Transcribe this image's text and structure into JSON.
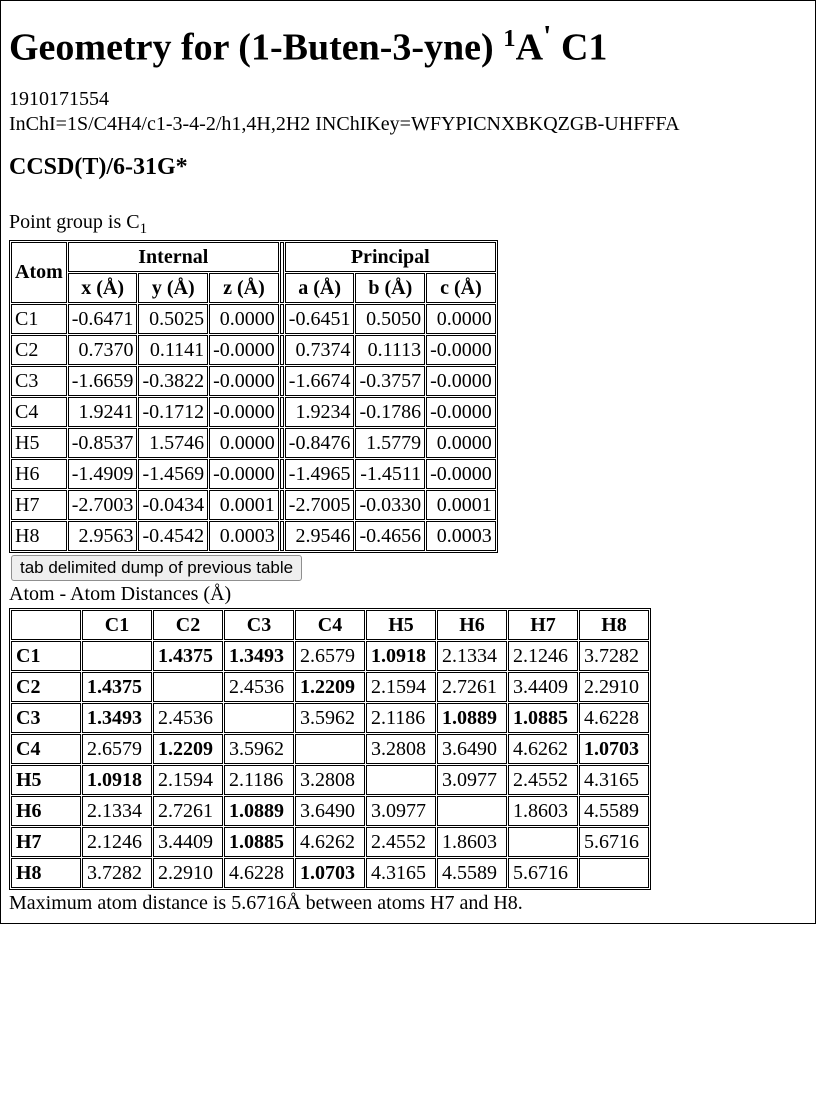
{
  "title_parts": {
    "prefix": "Geometry for (1-Buten-3-yne) ",
    "sup": "1",
    "letter": "A",
    "prime": "'",
    "suffix": " C1"
  },
  "meta": {
    "id": "1910171554",
    "inchi_line": "InChI=1S/C4H4/c1-3-4-2/h1,4H,2H2 INChIKey=WFYPICNXBKQZGB-UHFFFA"
  },
  "method": "CCSD(T)/6-31G*",
  "point_group_prefix": "Point group is C",
  "point_group_sub": "1",
  "coords": {
    "header_atom": "Atom",
    "header_internal": "Internal",
    "header_principal": "Principal",
    "cols_internal": [
      "x (Å)",
      "y (Å)",
      "z (Å)"
    ],
    "cols_principal": [
      "a (Å)",
      "b (Å)",
      "c (Å)"
    ],
    "rows": [
      {
        "atom": "C1",
        "x": "-0.6471",
        "y": "0.5025",
        "z": "0.0000",
        "a": "-0.6451",
        "b": "0.5050",
        "c": "0.0000"
      },
      {
        "atom": "C2",
        "x": "0.7370",
        "y": "0.1141",
        "z": "-0.0000",
        "a": "0.7374",
        "b": "0.1113",
        "c": "-0.0000"
      },
      {
        "atom": "C3",
        "x": "-1.6659",
        "y": "-0.3822",
        "z": "-0.0000",
        "a": "-1.6674",
        "b": "-0.3757",
        "c": "-0.0000"
      },
      {
        "atom": "C4",
        "x": "1.9241",
        "y": "-0.1712",
        "z": "-0.0000",
        "a": "1.9234",
        "b": "-0.1786",
        "c": "-0.0000"
      },
      {
        "atom": "H5",
        "x": "-0.8537",
        "y": "1.5746",
        "z": "0.0000",
        "a": "-0.8476",
        "b": "1.5779",
        "c": "0.0000"
      },
      {
        "atom": "H6",
        "x": "-1.4909",
        "y": "-1.4569",
        "z": "-0.0000",
        "a": "-1.4965",
        "b": "-1.4511",
        "c": "-0.0000"
      },
      {
        "atom": "H7",
        "x": "-2.7003",
        "y": "-0.0434",
        "z": "0.0001",
        "a": "-2.7005",
        "b": "-0.0330",
        "c": "0.0001"
      },
      {
        "atom": "H8",
        "x": "2.9563",
        "y": "-0.4542",
        "z": "0.0003",
        "a": "2.9546",
        "b": "-0.4656",
        "c": "0.0003"
      }
    ]
  },
  "dump_button": "tab delimited dump of previous table",
  "dist_caption": "Atom - Atom Distances (Å)",
  "dist": {
    "labels": [
      "C1",
      "C2",
      "C3",
      "C4",
      "H5",
      "H6",
      "H7",
      "H8"
    ],
    "bold_pairs": [
      "C1-C2",
      "C1-C3",
      "C1-H5",
      "C2-C4",
      "C3-H6",
      "C3-H7",
      "C4-H8"
    ],
    "matrix": [
      [
        "",
        "1.4375",
        "1.3493",
        "2.6579",
        "1.0918",
        "2.1334",
        "2.1246",
        "3.7282"
      ],
      [
        "1.4375",
        "",
        "2.4536",
        "1.2209",
        "2.1594",
        "2.7261",
        "3.4409",
        "2.2910"
      ],
      [
        "1.3493",
        "2.4536",
        "",
        "3.5962",
        "2.1186",
        "1.0889",
        "1.0885",
        "4.6228"
      ],
      [
        "2.6579",
        "1.2209",
        "3.5962",
        "",
        "3.2808",
        "3.6490",
        "4.6262",
        "1.0703"
      ],
      [
        "1.0918",
        "2.1594",
        "2.1186",
        "3.2808",
        "",
        "3.0977",
        "2.4552",
        "4.3165"
      ],
      [
        "2.1334",
        "2.7261",
        "1.0889",
        "3.6490",
        "3.0977",
        "",
        "1.8603",
        "4.5589"
      ],
      [
        "2.1246",
        "3.4409",
        "1.0885",
        "4.6262",
        "2.4552",
        "1.8603",
        "",
        "5.6716"
      ],
      [
        "3.7282",
        "2.2910",
        "4.6228",
        "1.0703",
        "4.3165",
        "4.5589",
        "5.6716",
        ""
      ]
    ]
  },
  "max_note": "Maximum atom distance is 5.6716Å between atoms H7 and H8."
}
